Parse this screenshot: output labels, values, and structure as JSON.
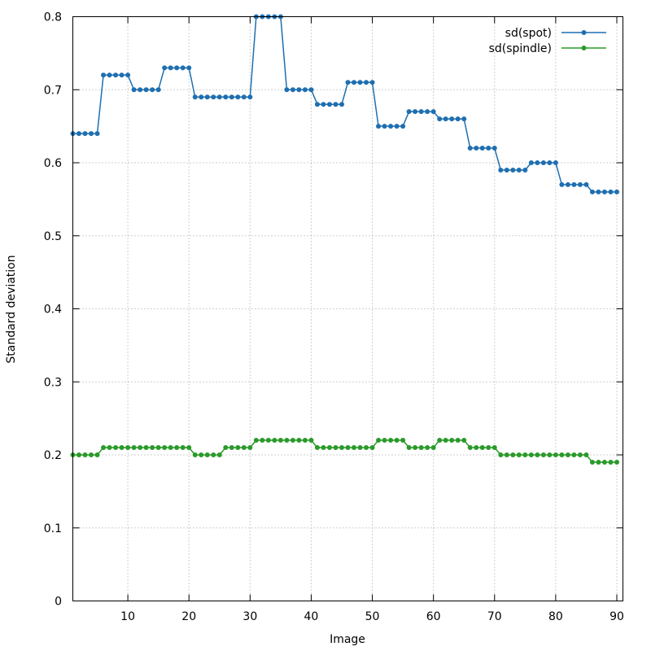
{
  "chart_data": {
    "type": "line",
    "title": "",
    "xlabel": "Image",
    "ylabel": "Standard deviation",
    "xlim": [
      1,
      91
    ],
    "ylim": [
      0,
      0.8
    ],
    "xticks": [
      10,
      20,
      30,
      40,
      50,
      60,
      70,
      80,
      90
    ],
    "yticks": [
      0,
      0.1,
      0.2,
      0.3,
      0.4,
      0.5,
      0.6,
      0.7,
      0.8
    ],
    "grid": true,
    "legend_position": "top-right",
    "x": [
      1,
      2,
      3,
      4,
      5,
      6,
      7,
      8,
      9,
      10,
      11,
      12,
      13,
      14,
      15,
      16,
      17,
      18,
      19,
      20,
      21,
      22,
      23,
      24,
      25,
      26,
      27,
      28,
      29,
      30,
      31,
      32,
      33,
      34,
      35,
      36,
      37,
      38,
      39,
      40,
      41,
      42,
      43,
      44,
      45,
      46,
      47,
      48,
      49,
      50,
      51,
      52,
      53,
      54,
      55,
      56,
      57,
      58,
      59,
      60,
      61,
      62,
      63,
      64,
      65,
      66,
      67,
      68,
      69,
      70,
      71,
      72,
      73,
      74,
      75,
      76,
      77,
      78,
      79,
      80,
      81,
      82,
      83,
      84,
      85,
      86,
      87,
      88,
      89,
      90
    ],
    "series": [
      {
        "name": "sd(spot)",
        "color": "#1f6fb0",
        "values": [
          0.64,
          0.64,
          0.64,
          0.64,
          0.64,
          0.72,
          0.72,
          0.72,
          0.72,
          0.72,
          0.7,
          0.7,
          0.7,
          0.7,
          0.7,
          0.73,
          0.73,
          0.73,
          0.73,
          0.73,
          0.69,
          0.69,
          0.69,
          0.69,
          0.69,
          0.69,
          0.69,
          0.69,
          0.69,
          0.69,
          0.8,
          0.8,
          0.8,
          0.8,
          0.8,
          0.7,
          0.7,
          0.7,
          0.7,
          0.7,
          0.68,
          0.68,
          0.68,
          0.68,
          0.68,
          0.71,
          0.71,
          0.71,
          0.71,
          0.71,
          0.65,
          0.65,
          0.65,
          0.65,
          0.65,
          0.67,
          0.67,
          0.67,
          0.67,
          0.67,
          0.66,
          0.66,
          0.66,
          0.66,
          0.66,
          0.62,
          0.62,
          0.62,
          0.62,
          0.62,
          0.59,
          0.59,
          0.59,
          0.59,
          0.59,
          0.6,
          0.6,
          0.6,
          0.6,
          0.6,
          0.57,
          0.57,
          0.57,
          0.57,
          0.57,
          0.56,
          0.56,
          0.56,
          0.56,
          0.56
        ]
      },
      {
        "name": "sd(spindle)",
        "color": "#2a9a2a",
        "values": [
          0.2,
          0.2,
          0.2,
          0.2,
          0.2,
          0.21,
          0.21,
          0.21,
          0.21,
          0.21,
          0.21,
          0.21,
          0.21,
          0.21,
          0.21,
          0.21,
          0.21,
          0.21,
          0.21,
          0.21,
          0.2,
          0.2,
          0.2,
          0.2,
          0.2,
          0.21,
          0.21,
          0.21,
          0.21,
          0.21,
          0.22,
          0.22,
          0.22,
          0.22,
          0.22,
          0.22,
          0.22,
          0.22,
          0.22,
          0.22,
          0.21,
          0.21,
          0.21,
          0.21,
          0.21,
          0.21,
          0.21,
          0.21,
          0.21,
          0.21,
          0.22,
          0.22,
          0.22,
          0.22,
          0.22,
          0.21,
          0.21,
          0.21,
          0.21,
          0.21,
          0.22,
          0.22,
          0.22,
          0.22,
          0.22,
          0.21,
          0.21,
          0.21,
          0.21,
          0.21,
          0.2,
          0.2,
          0.2,
          0.2,
          0.2,
          0.2,
          0.2,
          0.2,
          0.2,
          0.2,
          0.2,
          0.2,
          0.2,
          0.2,
          0.2,
          0.19,
          0.19,
          0.19,
          0.19,
          0.19
        ]
      }
    ]
  }
}
